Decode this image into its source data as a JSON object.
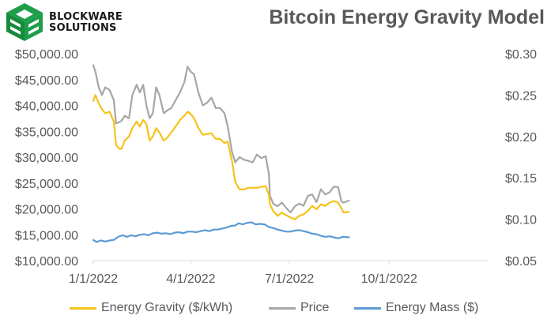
{
  "brand": {
    "line1": "BLOCKWARE",
    "line2": "SOLUTIONS"
  },
  "colors": {
    "energy_gravity": "#f6c21a",
    "price": "#a6a6a6",
    "energy_mass": "#5b9bd5",
    "logo_green": "#1e9e4a",
    "axis_text": "#595959"
  },
  "chart_data": {
    "type": "line",
    "title": "Bitcoin Energy Gravity Model",
    "left_axis": {
      "min": 10000,
      "max": 50000,
      "ticks": [
        "$10,000.00",
        "$15,000.00",
        "$20,000.00",
        "$25,000.00",
        "$30,000.00",
        "$35,000.00",
        "$40,000.00",
        "$45,000.00",
        "$50,000.00"
      ]
    },
    "right_axis": {
      "min": 0.05,
      "max": 0.3,
      "ticks": [
        "$0.05",
        "$0.10",
        "$0.15",
        "$0.20",
        "$0.25",
        "$0.30"
      ]
    },
    "x_axis": {
      "min": "2022-01-01",
      "max": "2022-12-31",
      "ticks": [
        "1/1/2022",
        "4/1/2022",
        "7/1/2022",
        "10/1/2022"
      ]
    },
    "legend_position": "bottom",
    "grid": false,
    "series": [
      {
        "name": "Energy Gravity ($/kWh)",
        "axis": "right",
        "points": [
          [
            "2022-01-01",
            0.243
          ],
          [
            "2022-01-03",
            0.25
          ],
          [
            "2022-01-06",
            0.24
          ],
          [
            "2022-01-09",
            0.233
          ],
          [
            "2022-01-12",
            0.228
          ],
          [
            "2022-01-16",
            0.23
          ],
          [
            "2022-01-20",
            0.218
          ],
          [
            "2022-01-22",
            0.19
          ],
          [
            "2022-01-25",
            0.185
          ],
          [
            "2022-01-27",
            0.185
          ],
          [
            "2022-01-30",
            0.195
          ],
          [
            "2022-02-03",
            0.2
          ],
          [
            "2022-02-06",
            0.21
          ],
          [
            "2022-02-10",
            0.218
          ],
          [
            "2022-02-13",
            0.212
          ],
          [
            "2022-02-16",
            0.22
          ],
          [
            "2022-02-19",
            0.215
          ],
          [
            "2022-02-22",
            0.195
          ],
          [
            "2022-02-25",
            0.2
          ],
          [
            "2022-02-28",
            0.21
          ],
          [
            "2022-03-03",
            0.205
          ],
          [
            "2022-03-07",
            0.195
          ],
          [
            "2022-03-10",
            0.198
          ],
          [
            "2022-03-14",
            0.205
          ],
          [
            "2022-03-18",
            0.212
          ],
          [
            "2022-03-22",
            0.22
          ],
          [
            "2022-03-26",
            0.225
          ],
          [
            "2022-03-29",
            0.23
          ],
          [
            "2022-04-01",
            0.227
          ],
          [
            "2022-04-04",
            0.222
          ],
          [
            "2022-04-08",
            0.21
          ],
          [
            "2022-04-12",
            0.202
          ],
          [
            "2022-04-16",
            0.203
          ],
          [
            "2022-04-20",
            0.204
          ],
          [
            "2022-04-24",
            0.197
          ],
          [
            "2022-04-28",
            0.197
          ],
          [
            "2022-05-02",
            0.192
          ],
          [
            "2022-05-05",
            0.194
          ],
          [
            "2022-05-09",
            0.17
          ],
          [
            "2022-05-12",
            0.145
          ],
          [
            "2022-05-16",
            0.136
          ],
          [
            "2022-05-20",
            0.136
          ],
          [
            "2022-05-24",
            0.138
          ],
          [
            "2022-05-28",
            0.138
          ],
          [
            "2022-06-01",
            0.138
          ],
          [
            "2022-06-05",
            0.139
          ],
          [
            "2022-06-09",
            0.14
          ],
          [
            "2022-06-12",
            0.13
          ],
          [
            "2022-06-13",
            0.118
          ],
          [
            "2022-06-16",
            0.11
          ],
          [
            "2022-06-20",
            0.104
          ],
          [
            "2022-06-24",
            0.108
          ],
          [
            "2022-06-28",
            0.105
          ],
          [
            "2022-07-02",
            0.102
          ],
          [
            "2022-07-06",
            0.1
          ],
          [
            "2022-07-10",
            0.104
          ],
          [
            "2022-07-14",
            0.106
          ],
          [
            "2022-07-18",
            0.11
          ],
          [
            "2022-07-22",
            0.116
          ],
          [
            "2022-07-26",
            0.112
          ],
          [
            "2022-07-30",
            0.118
          ],
          [
            "2022-08-03",
            0.116
          ],
          [
            "2022-08-07",
            0.12
          ],
          [
            "2022-08-11",
            0.122
          ],
          [
            "2022-08-15",
            0.12
          ],
          [
            "2022-08-18",
            0.113
          ],
          [
            "2022-08-20",
            0.108
          ],
          [
            "2022-08-25",
            0.109
          ]
        ]
      },
      {
        "name": "Price",
        "axis": "left",
        "points": [
          [
            "2022-01-01",
            47800
          ],
          [
            "2022-01-03",
            46500
          ],
          [
            "2022-01-06",
            43500
          ],
          [
            "2022-01-09",
            42000
          ],
          [
            "2022-01-12",
            43500
          ],
          [
            "2022-01-16",
            43000
          ],
          [
            "2022-01-20",
            41000
          ],
          [
            "2022-01-22",
            36500
          ],
          [
            "2022-01-25",
            36800
          ],
          [
            "2022-01-27",
            37000
          ],
          [
            "2022-01-30",
            38000
          ],
          [
            "2022-02-03",
            37500
          ],
          [
            "2022-02-06",
            42000
          ],
          [
            "2022-02-10",
            44000
          ],
          [
            "2022-02-13",
            42500
          ],
          [
            "2022-02-16",
            44000
          ],
          [
            "2022-02-19",
            40000
          ],
          [
            "2022-02-22",
            37500
          ],
          [
            "2022-02-25",
            38500
          ],
          [
            "2022-02-28",
            43500
          ],
          [
            "2022-03-03",
            42000
          ],
          [
            "2022-03-07",
            38500
          ],
          [
            "2022-03-10",
            39000
          ],
          [
            "2022-03-14",
            39500
          ],
          [
            "2022-03-18",
            41000
          ],
          [
            "2022-03-22",
            42500
          ],
          [
            "2022-03-26",
            44500
          ],
          [
            "2022-03-29",
            47500
          ],
          [
            "2022-04-01",
            46500
          ],
          [
            "2022-04-04",
            46000
          ],
          [
            "2022-04-08",
            42500
          ],
          [
            "2022-04-12",
            40000
          ],
          [
            "2022-04-16",
            40500
          ],
          [
            "2022-04-20",
            41500
          ],
          [
            "2022-04-24",
            39500
          ],
          [
            "2022-04-28",
            39500
          ],
          [
            "2022-05-02",
            38500
          ],
          [
            "2022-05-05",
            36000
          ],
          [
            "2022-05-09",
            31000
          ],
          [
            "2022-05-12",
            29000
          ],
          [
            "2022-05-16",
            30000
          ],
          [
            "2022-05-20",
            29500
          ],
          [
            "2022-05-24",
            29300
          ],
          [
            "2022-05-28",
            29000
          ],
          [
            "2022-06-01",
            30500
          ],
          [
            "2022-06-05",
            29800
          ],
          [
            "2022-06-09",
            30200
          ],
          [
            "2022-06-12",
            26800
          ],
          [
            "2022-06-13",
            22500
          ],
          [
            "2022-06-16",
            21000
          ],
          [
            "2022-06-20",
            20500
          ],
          [
            "2022-06-24",
            21200
          ],
          [
            "2022-06-28",
            20200
          ],
          [
            "2022-07-02",
            19300
          ],
          [
            "2022-07-06",
            20500
          ],
          [
            "2022-07-10",
            21000
          ],
          [
            "2022-07-14",
            20600
          ],
          [
            "2022-07-18",
            22500
          ],
          [
            "2022-07-22",
            22800
          ],
          [
            "2022-07-26",
            21300
          ],
          [
            "2022-07-30",
            23800
          ],
          [
            "2022-08-03",
            22800
          ],
          [
            "2022-08-07",
            23200
          ],
          [
            "2022-08-11",
            24300
          ],
          [
            "2022-08-15",
            24200
          ],
          [
            "2022-08-18",
            21400
          ],
          [
            "2022-08-20",
            21200
          ],
          [
            "2022-08-25",
            21600
          ]
        ]
      },
      {
        "name": "Energy Mass ($)",
        "axis": "left",
        "points": [
          [
            "2022-01-01",
            14000
          ],
          [
            "2022-01-04",
            13600
          ],
          [
            "2022-01-08",
            13900
          ],
          [
            "2022-01-12",
            13700
          ],
          [
            "2022-01-16",
            13900
          ],
          [
            "2022-01-20",
            14000
          ],
          [
            "2022-01-24",
            14600
          ],
          [
            "2022-01-28",
            14900
          ],
          [
            "2022-02-01",
            14600
          ],
          [
            "2022-02-05",
            14900
          ],
          [
            "2022-02-09",
            14700
          ],
          [
            "2022-02-13",
            15000
          ],
          [
            "2022-02-17",
            15100
          ],
          [
            "2022-02-21",
            14900
          ],
          [
            "2022-02-25",
            15300
          ],
          [
            "2022-03-01",
            15400
          ],
          [
            "2022-03-05",
            15200
          ],
          [
            "2022-03-09",
            15300
          ],
          [
            "2022-03-13",
            15100
          ],
          [
            "2022-03-17",
            15400
          ],
          [
            "2022-03-21",
            15500
          ],
          [
            "2022-03-25",
            15300
          ],
          [
            "2022-03-29",
            15600
          ],
          [
            "2022-04-02",
            15600
          ],
          [
            "2022-04-06",
            15500
          ],
          [
            "2022-04-10",
            15700
          ],
          [
            "2022-04-14",
            15900
          ],
          [
            "2022-04-18",
            15700
          ],
          [
            "2022-04-22",
            16000
          ],
          [
            "2022-04-26",
            16000
          ],
          [
            "2022-04-30",
            16200
          ],
          [
            "2022-05-04",
            16400
          ],
          [
            "2022-05-08",
            16700
          ],
          [
            "2022-05-12",
            16800
          ],
          [
            "2022-05-15",
            17200
          ],
          [
            "2022-05-19",
            17000
          ],
          [
            "2022-05-23",
            17300
          ],
          [
            "2022-05-27",
            17400
          ],
          [
            "2022-05-31",
            17000
          ],
          [
            "2022-06-04",
            17100
          ],
          [
            "2022-06-08",
            17000
          ],
          [
            "2022-06-12",
            16500
          ],
          [
            "2022-06-16",
            16300
          ],
          [
            "2022-06-20",
            16000
          ],
          [
            "2022-06-24",
            15800
          ],
          [
            "2022-06-28",
            15600
          ],
          [
            "2022-07-02",
            15600
          ],
          [
            "2022-07-06",
            15800
          ],
          [
            "2022-07-10",
            15900
          ],
          [
            "2022-07-14",
            15700
          ],
          [
            "2022-07-18",
            15500
          ],
          [
            "2022-07-22",
            15200
          ],
          [
            "2022-07-26",
            15100
          ],
          [
            "2022-07-30",
            14800
          ],
          [
            "2022-08-03",
            14600
          ],
          [
            "2022-08-07",
            14700
          ],
          [
            "2022-08-11",
            14500
          ],
          [
            "2022-08-15",
            14300
          ],
          [
            "2022-08-19",
            14600
          ],
          [
            "2022-08-25",
            14500
          ]
        ]
      }
    ]
  }
}
